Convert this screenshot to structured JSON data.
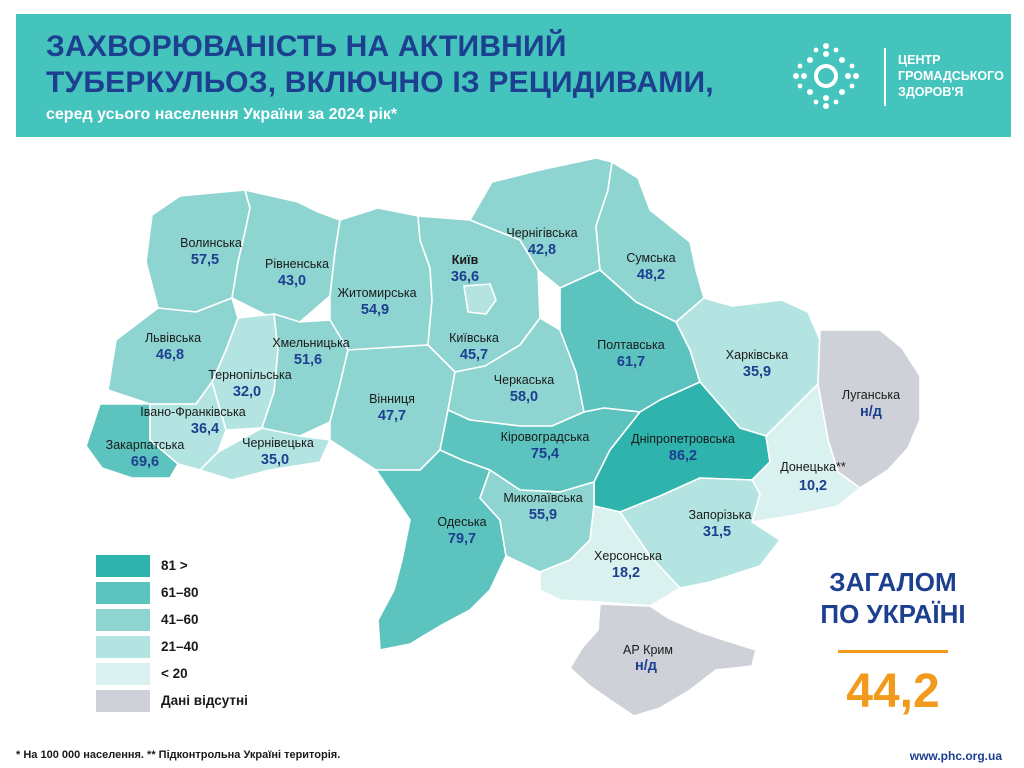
{
  "header": {
    "title_line1": "ЗАХВОРЮВАНІСТЬ НА АКТИВНИЙ",
    "title_line2": "ТУБЕРКУЛЬОЗ, ВКЛЮЧНО ІЗ РЕЦИДИВАМИ,",
    "subtitle": "серед усього населення України за 2024 рік*"
  },
  "logo": {
    "line1": "ЦЕНТР",
    "line2": "ГРОМАДСЬКОГО",
    "line3": "ЗДОРОВ'Я"
  },
  "colors": {
    "banner": "#45c3bd",
    "title": "#1d3f8f",
    "accent_orange": "#f19a1b",
    "class_81_plus": "#2fb3ad",
    "class_61_80": "#5cc3be",
    "class_41_60": "#8ed4d0",
    "class_21_40": "#b4e4e1",
    "class_below_20": "#d9f1ef",
    "class_no_data": "#cfd1d8"
  },
  "regions": [
    {
      "id": "volynska",
      "name": "Волинська",
      "value": "57,5",
      "cls": "class_41_60"
    },
    {
      "id": "rivnenska",
      "name": "Рівненська",
      "value": "43,0",
      "cls": "class_41_60"
    },
    {
      "id": "zhytomyrska",
      "name": "Житомирська",
      "value": "54,9",
      "cls": "class_41_60"
    },
    {
      "id": "kyiv",
      "name": "Київ",
      "value": "36,6",
      "cls": "class_21_40"
    },
    {
      "id": "kyivska",
      "name": "Київська",
      "value": "45,7",
      "cls": "class_41_60"
    },
    {
      "id": "chernihivska",
      "name": "Чернігівська",
      "value": "42,8",
      "cls": "class_41_60"
    },
    {
      "id": "sumska",
      "name": "Сумська",
      "value": "48,2",
      "cls": "class_41_60"
    },
    {
      "id": "lvivska",
      "name": "Львівська",
      "value": "46,8",
      "cls": "class_41_60"
    },
    {
      "id": "khmelnytska",
      "name": "Хмельницька",
      "value": "51,6",
      "cls": "class_41_60"
    },
    {
      "id": "ternopilska",
      "name": "Тернопільська",
      "value": "32,0",
      "cls": "class_21_40"
    },
    {
      "id": "ivanofrankivska",
      "name": "Івано-Франківська",
      "value": "36,4",
      "cls": "class_21_40"
    },
    {
      "id": "zakarpatska",
      "name": "Закарпатська",
      "value": "69,6",
      "cls": "class_61_80"
    },
    {
      "id": "chernivetska",
      "name": "Чернівецька",
      "value": "35,0",
      "cls": "class_21_40"
    },
    {
      "id": "vinnytska",
      "name": "Вінниця",
      "value": "47,7",
      "cls": "class_41_60"
    },
    {
      "id": "cherkaska",
      "name": "Черкаська",
      "value": "58,0",
      "cls": "class_41_60"
    },
    {
      "id": "poltavska",
      "name": "Полтавська",
      "value": "61,7",
      "cls": "class_61_80"
    },
    {
      "id": "kharkivska",
      "name": "Харківська",
      "value": "35,9",
      "cls": "class_21_40"
    },
    {
      "id": "luhanska",
      "name": "Луганська",
      "value": "н/д",
      "cls": "class_no_data"
    },
    {
      "id": "kirovohradska",
      "name": "Кіровоградська",
      "value": "75,4",
      "cls": "class_61_80"
    },
    {
      "id": "dnipropetrovska",
      "name": "Дніпропетровська",
      "value": "86,2",
      "cls": "class_81_plus"
    },
    {
      "id": "donetska",
      "name": "Донецька**",
      "value": "10,2",
      "cls": "class_below_20"
    },
    {
      "id": "odeska",
      "name": "Одеська",
      "value": "79,7",
      "cls": "class_61_80"
    },
    {
      "id": "mykolaivska",
      "name": "Миколаївська",
      "value": "55,9",
      "cls": "class_41_60"
    },
    {
      "id": "zaporizka",
      "name": "Запорізька",
      "value": "31,5",
      "cls": "class_21_40"
    },
    {
      "id": "khersonska",
      "name": "Херсонська",
      "value": "18,2",
      "cls": "class_below_20"
    },
    {
      "id": "crimea",
      "name": "АР Крим",
      "value": "н/д",
      "cls": "class_no_data"
    }
  ],
  "legend": [
    {
      "label": "81 >",
      "cls": "class_81_plus"
    },
    {
      "label": "61–80",
      "cls": "class_61_80"
    },
    {
      "label": "41–60",
      "cls": "class_41_60"
    },
    {
      "label": "21–40",
      "cls": "class_21_40"
    },
    {
      "label": "< 20",
      "cls": "class_below_20"
    },
    {
      "label": "Дані відсутні",
      "cls": "class_no_data"
    }
  ],
  "total": {
    "label_line1": "ЗАГАЛОМ",
    "label_line2": "ПО УКРАЇНІ",
    "value": "44,2"
  },
  "footer": {
    "footnote": "* На 100 000 населення. ** Підконтрольна Україні територія.",
    "website": "www.phc.org.ua"
  }
}
